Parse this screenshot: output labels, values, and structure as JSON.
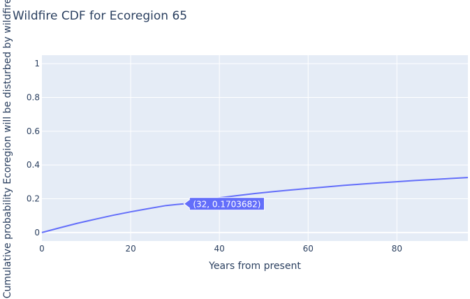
{
  "chart_data": {
    "type": "line",
    "title": "Wildfire CDF for Ecoregion 65",
    "xlabel": "Years from present",
    "ylabel": "Cumulative probability Ecoregion will be disturbed by wildfire",
    "xlim": [
      0,
      96
    ],
    "ylim": [
      -0.05,
      1.05
    ],
    "x_ticks": [
      0,
      20,
      40,
      60,
      80
    ],
    "x_tick_labels": [
      "0",
      "20",
      "40",
      "60",
      "80"
    ],
    "y_ticks": [
      0,
      0.2,
      0.4,
      0.6,
      0.8,
      1
    ],
    "y_tick_labels": [
      "0",
      "0.2",
      "0.4",
      "0.6",
      "0.8",
      "1"
    ],
    "grid": true,
    "series": [
      {
        "color": "#636efa",
        "x": [
          0,
          4,
          8,
          12,
          16,
          20,
          24,
          28,
          32,
          36,
          40,
          44,
          48,
          52,
          56,
          60,
          64,
          68,
          72,
          76,
          80,
          84,
          88,
          92,
          96
        ],
        "y": [
          0.0,
          0.028,
          0.055,
          0.079,
          0.102,
          0.123,
          0.142,
          0.16,
          0.1703682,
          0.192,
          0.206,
          0.219,
          0.231,
          0.242,
          0.252,
          0.261,
          0.27,
          0.279,
          0.287,
          0.294,
          0.301,
          0.308,
          0.314,
          0.32,
          0.326
        ]
      }
    ],
    "hover": {
      "x": 32,
      "y": 0.1703682,
      "label": "(32, 0.1703682)",
      "color": "#636efa"
    }
  },
  "colors": {
    "plot_bg": "#e5ecf6",
    "grid": "#ffffff",
    "text": "#2a3f5f"
  }
}
